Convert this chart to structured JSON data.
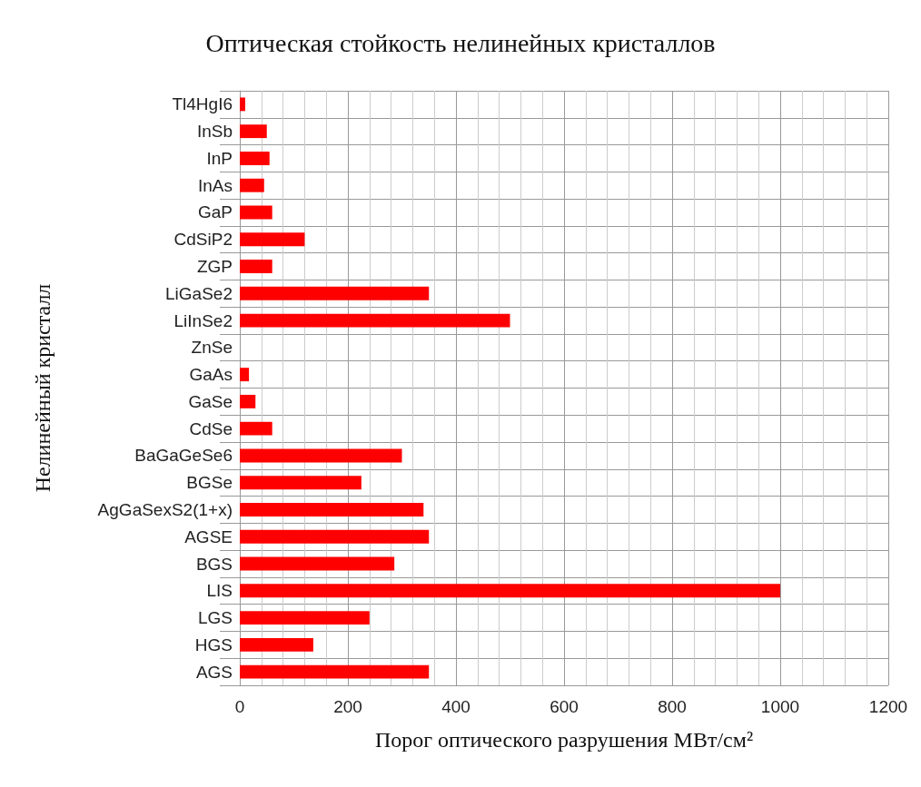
{
  "chart_data": {
    "type": "bar",
    "orientation": "horizontal",
    "title": "Оптическая стойкость нелинейных кристаллов",
    "xlabel": "Порог оптического разрушения МВт/см²",
    "ylabel": "Нелинейный кристалл",
    "categories": [
      "Tl4HgI6",
      "InSb",
      "InP",
      "InAs",
      "GaP",
      "CdSiP2",
      "ZGP",
      "LiGaSe2",
      "LiInSe2",
      "ZnSe",
      "GaAs",
      "GaSe",
      "CdSe",
      "BaGaGeSe6",
      "BGSe",
      "AgGaSexS2(1+x)",
      "AGSE",
      "BGS",
      "LIS",
      "LGS",
      "HGS",
      "AGS"
    ],
    "values": [
      10,
      50,
      55,
      45,
      60,
      120,
      60,
      350,
      500,
      null,
      17,
      29,
      60,
      300,
      225,
      340,
      350,
      286,
      1000,
      240,
      136,
      350
    ],
    "color": "#ff0000",
    "xlim": [
      0,
      1200
    ],
    "xticks": [
      0,
      200,
      400,
      600,
      800,
      1000,
      1200
    ],
    "grid": true
  }
}
